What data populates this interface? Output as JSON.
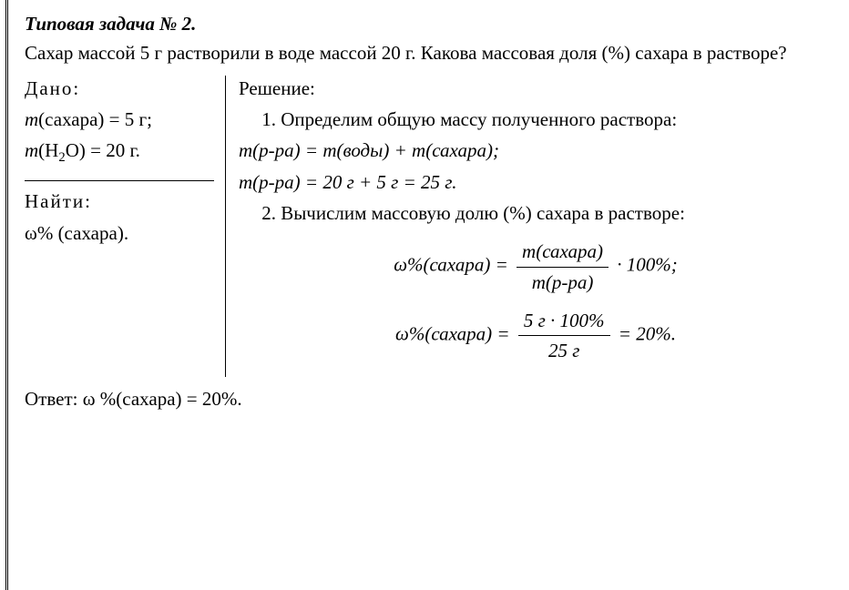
{
  "title": "Типовая задача № 2.",
  "problem": "Сахар массой 5 г растворили в воде массой 20 г. Какова массовая доля (%) сахара в растворе?",
  "given": {
    "label": "Дано:",
    "line1_pre": "m",
    "line1_arg": "(сахара) = 5 г;",
    "line2_pre": "m",
    "line2_arg": "(H",
    "line2_sub": "2",
    "line2_tail": "O) = 20 г."
  },
  "find": {
    "label": "Найти:",
    "line1": "ω% (сахара)."
  },
  "solution": {
    "label": "Решение:",
    "step1": "1. Определим общую массу полученного раствора:",
    "eq1a": "m(р-ра) = m(воды) + m(сахара);",
    "eq1b": "m(р-ра) = 20 г + 5 г = 25 г.",
    "step2": "2. Вычислим массовую долю (%) сахара в растворе:",
    "formula1_left": "ω%(сахара) =",
    "formula1_num": "m(сахара)",
    "formula1_den": "m(р-ра)",
    "formula1_right": "· 100%;",
    "formula2_left": "ω%(сахара) =",
    "formula2_num": "5 г · 100%",
    "formula2_den": "25 г",
    "formula2_right": "= 20%."
  },
  "answer": "Ответ: ω %(сахара) = 20%."
}
